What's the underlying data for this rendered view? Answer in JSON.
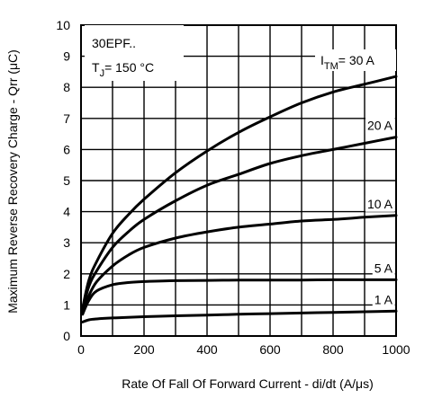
{
  "chart_data": {
    "type": "line",
    "xlabel": "Rate Of Fall Of Forward Current - di/dt (A/μs)",
    "ylabel": "Maximum Reverse Recovery Charge - Qrr (μC)",
    "xlim": [
      0,
      1000
    ],
    "ylim": [
      0,
      10
    ],
    "x_ticks": [
      "0",
      "200",
      "400",
      "600",
      "800",
      "1000"
    ],
    "y_ticks": [
      "0",
      "1",
      "2",
      "3",
      "4",
      "5",
      "6",
      "7",
      "8",
      "9",
      "10"
    ],
    "grid": true,
    "annotations": {
      "device": "30EPF..",
      "tj_symbol": "T",
      "tj_sub": "J",
      "tj_value": "= 150 °C",
      "itm_symbol": "I",
      "itm_sub": "TM",
      "itm_value": "= 30 A"
    },
    "series": [
      {
        "name": "30 A",
        "label": "= 30 A",
        "x": [
          5,
          25,
          50,
          100,
          150,
          200,
          300,
          400,
          500,
          600,
          700,
          800,
          900,
          1000
        ],
        "y": [
          0.9,
          1.8,
          2.4,
          3.3,
          3.9,
          4.4,
          5.25,
          5.95,
          6.55,
          7.05,
          7.5,
          7.85,
          8.1,
          8.35
        ]
      },
      {
        "name": "20 A",
        "label": "20 A",
        "x": [
          5,
          25,
          50,
          100,
          150,
          200,
          300,
          400,
          500,
          600,
          700,
          800,
          900,
          1000
        ],
        "y": [
          0.85,
          1.6,
          2.1,
          2.85,
          3.35,
          3.75,
          4.35,
          4.85,
          5.2,
          5.55,
          5.8,
          6.0,
          6.2,
          6.4
        ]
      },
      {
        "name": "10 A",
        "label": "10 A",
        "x": [
          5,
          25,
          50,
          100,
          150,
          200,
          300,
          400,
          500,
          600,
          700,
          800,
          900,
          1000
        ],
        "y": [
          0.75,
          1.3,
          1.75,
          2.25,
          2.6,
          2.85,
          3.15,
          3.35,
          3.5,
          3.6,
          3.7,
          3.75,
          3.82,
          3.88
        ]
      },
      {
        "name": "5 A",
        "label": "5 A",
        "x": [
          5,
          25,
          50,
          100,
          150,
          200,
          300,
          400,
          500,
          600,
          700,
          800,
          900,
          1000
        ],
        "y": [
          0.7,
          1.15,
          1.45,
          1.65,
          1.72,
          1.75,
          1.78,
          1.79,
          1.8,
          1.8,
          1.8,
          1.81,
          1.81,
          1.81
        ]
      },
      {
        "name": "1 A",
        "label": "1 A",
        "x": [
          5,
          25,
          50,
          100,
          200,
          300,
          400,
          500,
          600,
          700,
          800,
          900,
          1000
        ],
        "y": [
          0.45,
          0.52,
          0.55,
          0.58,
          0.62,
          0.65,
          0.67,
          0.7,
          0.72,
          0.74,
          0.76,
          0.78,
          0.8
        ]
      }
    ]
  }
}
